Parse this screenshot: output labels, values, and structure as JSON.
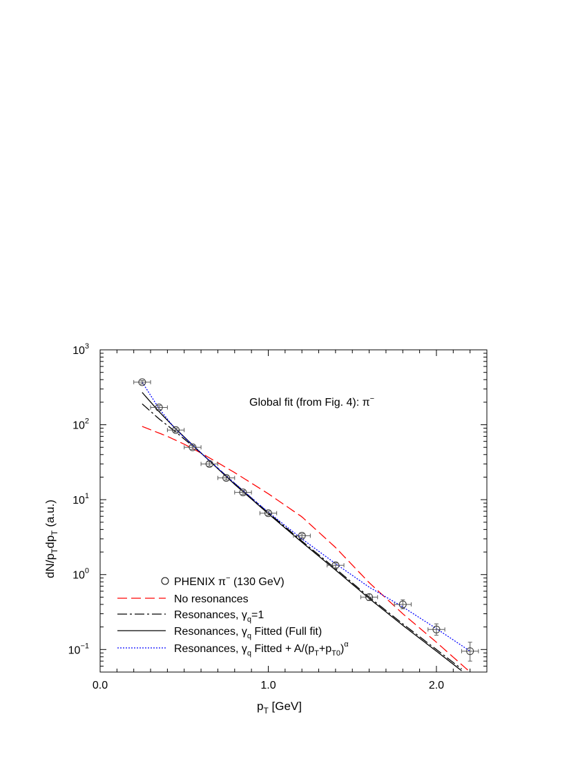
{
  "chart_data": {
    "type": "line",
    "xlabel": "p_T [GeV]",
    "ylabel": "dN/p_Tdp_T (a.u.)",
    "annotation": "Global fit (from Fig. 4):  π⁻",
    "xlim": [
      0.0,
      2.3
    ],
    "ylim": [
      0.05,
      1000
    ],
    "yscale": "log",
    "grid": false,
    "legend_position": "bottom-left",
    "x_ticks": [
      {
        "value": 0.0,
        "label": "0.0"
      },
      {
        "value": 1.0,
        "label": "1.0"
      },
      {
        "value": 2.0,
        "label": "2.0"
      }
    ],
    "y_ticks": [
      {
        "value": 0.1,
        "base": "10",
        "exp": "−1"
      },
      {
        "value": 1,
        "base": "10",
        "exp": "0"
      },
      {
        "value": 10,
        "base": "10",
        "exp": "1"
      },
      {
        "value": 100,
        "base": "10",
        "exp": "2"
      },
      {
        "value": 1000,
        "base": "10",
        "exp": "3"
      }
    ],
    "data_points": {
      "name": "PHENIX π⁻ (130 GeV)",
      "x": [
        0.25,
        0.35,
        0.45,
        0.55,
        0.65,
        0.75,
        0.85,
        1.0,
        1.2,
        1.4,
        1.6,
        1.8,
        2.0,
        2.2
      ],
      "y": [
        370,
        170,
        85,
        50,
        30,
        19.5,
        12.5,
        6.6,
        3.3,
        1.33,
        0.5,
        0.4,
        0.185,
        0.095
      ],
      "xerr": [
        0.05,
        0.05,
        0.05,
        0.05,
        0.05,
        0.05,
        0.05,
        0.05,
        0.05,
        0.05,
        0.05,
        0.05,
        0.05,
        0.05
      ],
      "yerr_lo": [
        20,
        10,
        5,
        3,
        2,
        1.2,
        0.8,
        0.4,
        0.2,
        0.1,
        0.05,
        0.05,
        0.03,
        0.025
      ],
      "yerr_hi": [
        20,
        10,
        5,
        3,
        2,
        1.2,
        0.8,
        0.4,
        0.2,
        0.1,
        0.05,
        0.06,
        0.035,
        0.03
      ]
    },
    "series": [
      {
        "name": "No resonances",
        "color": "#ff0000",
        "style": "dashed",
        "x": [
          0.25,
          0.4,
          0.5,
          0.6,
          0.8,
          1.0,
          1.2,
          1.4,
          1.6,
          1.8,
          2.0,
          2.2
        ],
        "y": [
          95,
          70,
          55,
          42,
          23,
          12,
          5.9,
          2.3,
          0.78,
          0.3,
          0.125,
          0.05
        ]
      },
      {
        "name": "Resonances, γq=1",
        "color": "#000000",
        "style": "dashdot",
        "x": [
          0.25,
          0.35,
          0.45,
          0.6,
          0.8,
          1.0,
          1.2,
          1.4,
          1.6,
          1.8,
          2.0,
          2.15
        ],
        "y": [
          190,
          120,
          80,
          42,
          16.5,
          6.7,
          2.8,
          1.2,
          0.5,
          0.22,
          0.1,
          0.055
        ]
      },
      {
        "name": "Resonances, γq Fitted (Full fit)",
        "color": "#000000",
        "style": "solid",
        "x": [
          0.25,
          0.35,
          0.45,
          0.6,
          0.8,
          1.0,
          1.2,
          1.4,
          1.6,
          1.8,
          2.0,
          2.15
        ],
        "y": [
          270,
          150,
          88,
          42,
          16,
          6.5,
          2.7,
          1.15,
          0.48,
          0.21,
          0.095,
          0.052
        ]
      },
      {
        "name": "Resonances, γq Fitted + A/(pT+pT0)^α",
        "color": "#0000ff",
        "style": "dotted",
        "x": [
          0.25,
          0.35,
          0.45,
          0.6,
          0.8,
          1.0,
          1.2,
          1.4,
          1.6,
          1.8,
          2.0,
          2.2
        ],
        "y": [
          370,
          165,
          86,
          42,
          16.5,
          6.8,
          3.0,
          1.4,
          0.68,
          0.37,
          0.19,
          0.095
        ]
      }
    ],
    "legend": {
      "points_label": "PHENIX π",
      "points_label_sup": "−",
      "points_label_tail": " (130 GeV)",
      "no_res": "No resonances",
      "res1_a": "Resonances, γ",
      "res1_sub": "q",
      "res1_b": "=1",
      "res2_a": "Resonances, γ",
      "res2_sub": "q",
      "res2_b": " Fitted (Full fit)",
      "res3_a": "Resonances, γ",
      "res3_sub": "q",
      "res3_b": " Fitted + A/(p",
      "res3_sub2": "T",
      "res3_c": "+p",
      "res3_sub3": "T0",
      "res3_d": ")",
      "res3_sup": "α"
    },
    "labels": {
      "x_main": "p",
      "x_sub": "T",
      "x_tail": " [GeV]",
      "y_a": "dN/p",
      "y_sub1": "T",
      "y_b": "dp",
      "y_sub2": "T",
      "y_c": " (a.u.)",
      "annot_main": "Global fit (from Fig. 4):  π",
      "annot_sup": "−"
    }
  }
}
